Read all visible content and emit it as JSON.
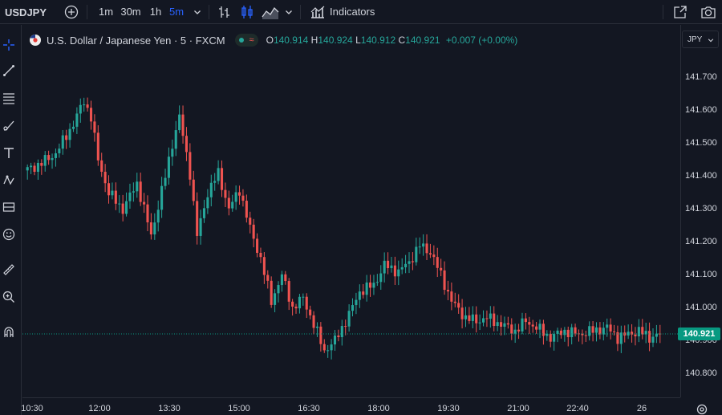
{
  "header": {
    "symbol": "USDJPY",
    "intervals": [
      "1m",
      "30m",
      "1h",
      "5m"
    ],
    "active_interval": "5m",
    "indicators_label": "Indicators"
  },
  "legend": {
    "title": "U.S. Dollar / Japanese Yen · 5 · FXCM",
    "o_label": "O",
    "o_value": "140.914",
    "h_label": "H",
    "h_value": "140.924",
    "l_label": "L",
    "l_value": "140.912",
    "c_label": "C",
    "c_value": "140.921",
    "change": "+0.007 (+0.00%)"
  },
  "currency_select": "JPY",
  "icons": [
    "add-symbol-icon",
    "bar-style-icon",
    "candle-style-icon",
    "area-style-icon",
    "indicators-icon",
    "fullscreen-icon",
    "camera-icon",
    "crosshair-icon",
    "trendline-icon",
    "fib-icon",
    "brush-icon",
    "text-icon",
    "pattern-icon",
    "forecast-icon",
    "smile-icon",
    "ruler-icon",
    "zoom-icon",
    "magnet-icon",
    "settings-icon"
  ],
  "colors": {
    "up": "#26a69a",
    "down": "#ef5350",
    "background": "#131722",
    "current_price": "#089981",
    "accent": "#2962ff"
  },
  "chart_data": {
    "type": "candlestick",
    "title": "U.S. Dollar / Japanese Yen · 5 · FXCM",
    "y_ticks": [
      "141.700",
      "141.600",
      "141.500",
      "141.400",
      "141.300",
      "141.200",
      "141.100",
      "141.000",
      "140.900",
      "140.800"
    ],
    "x_ticks": [
      "10:30",
      "12:00",
      "13:30",
      "15:00",
      "16:30",
      "18:00",
      "19:30",
      "21:00",
      "22:40",
      "26"
    ],
    "ylim": [
      140.75,
      141.78
    ],
    "current_price": "140.921",
    "grid": false,
    "close_path": [
      [
        0,
        141.42
      ],
      [
        4,
        141.44
      ],
      [
        8,
        141.47
      ],
      [
        13,
        141.56
      ],
      [
        16,
        141.63
      ],
      [
        18,
        141.58
      ],
      [
        20,
        141.45
      ],
      [
        23,
        141.35
      ],
      [
        27,
        141.3
      ],
      [
        31,
        141.38
      ],
      [
        35,
        141.22
      ],
      [
        39,
        141.4
      ],
      [
        41,
        141.5
      ],
      [
        43,
        141.58
      ],
      [
        46,
        141.41
      ],
      [
        48,
        141.22
      ],
      [
        51,
        141.35
      ],
      [
        54,
        141.41
      ],
      [
        57,
        141.3
      ],
      [
        60,
        141.36
      ],
      [
        63,
        141.24
      ],
      [
        66,
        141.15
      ],
      [
        69,
        141.02
      ],
      [
        72,
        141.1
      ],
      [
        75,
        141.0
      ],
      [
        78,
        141.03
      ],
      [
        81,
        140.95
      ],
      [
        84,
        140.87
      ],
      [
        87,
        140.9
      ],
      [
        91,
        140.98
      ],
      [
        94,
        141.05
      ],
      [
        98,
        141.07
      ],
      [
        101,
        141.13
      ],
      [
        105,
        141.11
      ],
      [
        108,
        141.14
      ],
      [
        111,
        141.19
      ],
      [
        114,
        141.17
      ],
      [
        117,
        141.1
      ],
      [
        120,
        141.02
      ],
      [
        124,
        140.97
      ],
      [
        127,
        140.96
      ],
      [
        130,
        140.97
      ],
      [
        134,
        140.95
      ],
      [
        138,
        140.93
      ],
      [
        141,
        140.96
      ],
      [
        144,
        140.94
      ],
      [
        148,
        140.91
      ],
      [
        152,
        140.93
      ],
      [
        156,
        140.92
      ],
      [
        160,
        140.93
      ],
      [
        164,
        140.94
      ],
      [
        167,
        140.91
      ],
      [
        170,
        140.92
      ],
      [
        173,
        140.93
      ],
      [
        176,
        140.91
      ],
      [
        179,
        140.921
      ]
    ]
  }
}
